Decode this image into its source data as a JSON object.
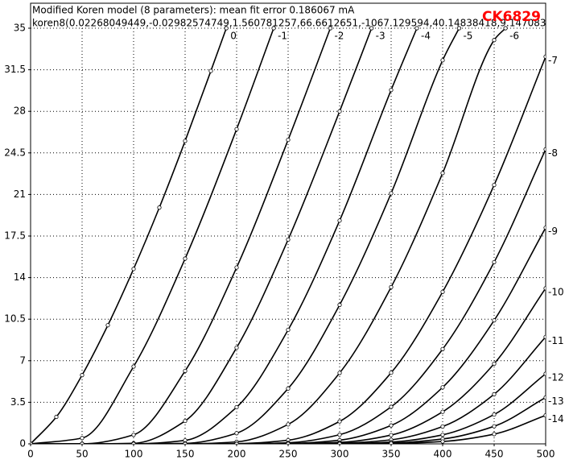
{
  "chart_data": {
    "type": "line",
    "title": "Modified Koren model (8 parameters): mean fit error 0.186067 mA",
    "subtitle": "koren8(0.02268049449,-0.02982574749,1.560781257,66.6612651,-1067.129594,40.14838418,9.147083",
    "annotation": "CK6829",
    "annotation_color": "#ff0000",
    "xlim": [
      0,
      500
    ],
    "ylim": [
      0,
      35
    ],
    "xticks": [
      0,
      50,
      100,
      150,
      200,
      250,
      300,
      350,
      400,
      450,
      500
    ],
    "yticks": [
      0,
      3.5,
      7,
      10.5,
      14,
      17.5,
      21,
      24.5,
      28,
      31.5,
      35
    ],
    "grid": true,
    "markers": true,
    "series": [
      {
        "name": "0",
        "color": "#000000",
        "x": [
          0,
          25,
          50,
          75,
          100,
          125,
          150,
          175,
          190
        ],
        "values": [
          0,
          2.27,
          5.79,
          9.99,
          14.73,
          19.9,
          25.5,
          31.4,
          35
        ]
      },
      {
        "name": "-1",
        "color": "#000000",
        "x": [
          0,
          50,
          100,
          150,
          200,
          236
        ],
        "values": [
          0,
          0.49,
          6.51,
          15.6,
          26.5,
          35
        ]
      },
      {
        "name": "-2",
        "color": "#000000",
        "x": [
          0,
          50,
          100,
          150,
          200,
          250,
          291
        ],
        "values": [
          0,
          0,
          0.76,
          6.14,
          14.85,
          25.6,
          35
        ]
      },
      {
        "name": "-3",
        "color": "#000000",
        "x": [
          0,
          50,
          100,
          150,
          200,
          250,
          300,
          331
        ],
        "values": [
          0,
          0,
          0.05,
          1.93,
          8.1,
          17.2,
          28.0,
          35
        ]
      },
      {
        "name": "-4",
        "color": "#000000",
        "x": [
          0,
          50,
          100,
          150,
          200,
          250,
          300,
          350,
          375
        ],
        "values": [
          0,
          0,
          0,
          0.29,
          3.09,
          9.6,
          18.8,
          29.8,
          35
        ]
      },
      {
        "name": "-5",
        "color": "#000000",
        "x": [
          0,
          50,
          100,
          150,
          200,
          250,
          300,
          350,
          400,
          416
        ],
        "values": [
          0,
          0,
          0,
          0.04,
          0.9,
          4.66,
          11.7,
          21.1,
          32.3,
          35
        ]
      },
      {
        "name": "-6",
        "color": "#000000",
        "x": [
          0,
          50,
          100,
          150,
          200,
          250,
          300,
          350,
          400,
          450,
          461
        ],
        "values": [
          0,
          0,
          0,
          0,
          0.17,
          1.64,
          5.97,
          13.2,
          22.8,
          34.0,
          35
        ]
      },
      {
        "name": "-7",
        "color": "#000000",
        "x": [
          0,
          50,
          100,
          150,
          200,
          250,
          300,
          350,
          400,
          450,
          500
        ],
        "values": [
          0,
          0,
          0,
          0,
          0.02,
          0.31,
          1.89,
          5.99,
          12.8,
          21.8,
          32.6
        ]
      },
      {
        "name": "-8",
        "color": "#000000",
        "x": [
          0,
          50,
          100,
          150,
          200,
          250,
          300,
          350,
          400,
          450,
          500
        ],
        "values": [
          0,
          0,
          0,
          0,
          0,
          0.09,
          0.77,
          3.12,
          7.98,
          15.3,
          24.8
        ]
      },
      {
        "name": "-9",
        "color": "#000000",
        "x": [
          0,
          50,
          100,
          150,
          200,
          250,
          300,
          350,
          400,
          450,
          500
        ],
        "values": [
          0,
          0,
          0,
          0,
          0,
          0.03,
          0.31,
          1.55,
          4.76,
          10.4,
          18.2
        ]
      },
      {
        "name": "-10",
        "color": "#000000",
        "x": [
          0,
          50,
          100,
          150,
          200,
          250,
          300,
          350,
          400,
          450,
          500
        ],
        "values": [
          0,
          0,
          0,
          0,
          0,
          0.01,
          0.12,
          0.74,
          2.7,
          6.75,
          13.1
        ]
      },
      {
        "name": "-11",
        "color": "#000000",
        "x": [
          0,
          50,
          100,
          150,
          200,
          250,
          300,
          350,
          400,
          450,
          500
        ],
        "values": [
          0,
          0,
          0,
          0,
          0,
          0,
          0.05,
          0.34,
          1.46,
          4.18,
          9.0
        ]
      },
      {
        "name": "-12",
        "color": "#000000",
        "x": [
          0,
          50,
          100,
          150,
          200,
          250,
          300,
          350,
          400,
          450,
          500
        ],
        "values": [
          0,
          0,
          0,
          0,
          0,
          0,
          0.02,
          0.15,
          0.76,
          2.47,
          5.9
        ]
      },
      {
        "name": "-13",
        "color": "#000000",
        "x": [
          0,
          50,
          100,
          150,
          200,
          250,
          300,
          350,
          400,
          450,
          500
        ],
        "values": [
          0,
          0,
          0,
          0,
          0,
          0,
          0.01,
          0.07,
          0.41,
          1.48,
          3.9
        ]
      },
      {
        "name": "-14",
        "color": "#000000",
        "x": [
          0,
          50,
          100,
          150,
          200,
          250,
          300,
          350,
          400,
          450,
          500
        ],
        "values": [
          0,
          0,
          0,
          0,
          0,
          0,
          0,
          0.03,
          0.2,
          0.82,
          2.4
        ]
      }
    ]
  }
}
